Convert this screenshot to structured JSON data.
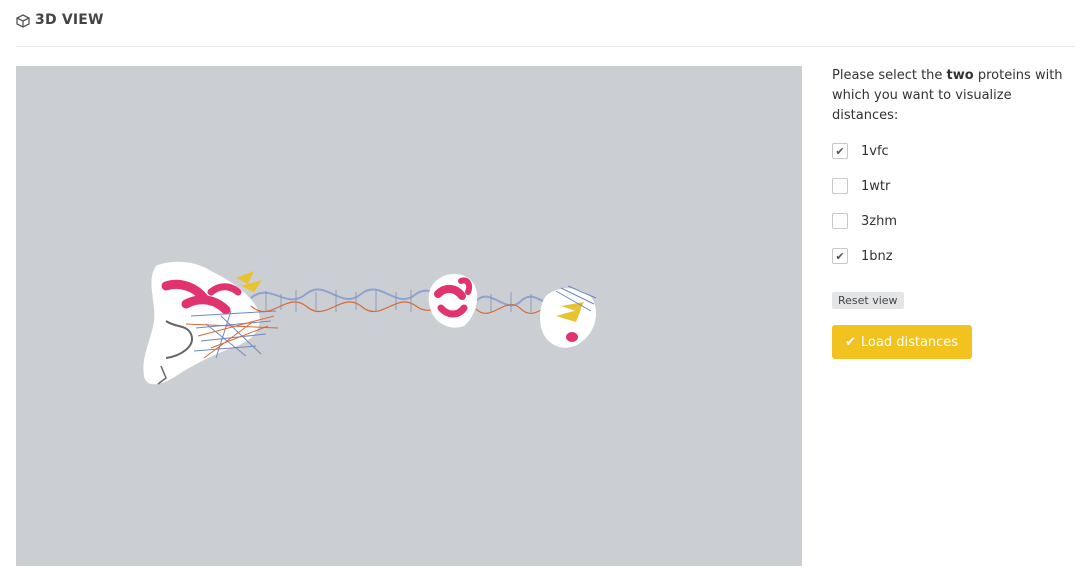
{
  "header": {
    "title": "3D VIEW",
    "icon": "cube-icon"
  },
  "instructions": {
    "before": "Please select the ",
    "bold": "two",
    "after": " proteins with which you want to visualize distances:"
  },
  "proteins": [
    {
      "id": "1vfc",
      "checked": true
    },
    {
      "id": "1wtr",
      "checked": false
    },
    {
      "id": "3zhm",
      "checked": false
    },
    {
      "id": "1bnz",
      "checked": true
    }
  ],
  "buttons": {
    "reset": "Reset view",
    "load": "Load distances"
  },
  "colors": {
    "viewer_bg": "#cbcfd3",
    "accent": "#f2c31f",
    "helix": "#e0336f",
    "sheet": "#e9c230"
  }
}
